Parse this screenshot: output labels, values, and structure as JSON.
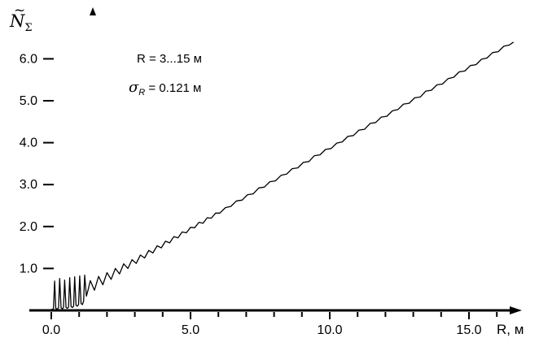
{
  "figure": {
    "y_axis_title": {
      "base": "N",
      "tilde": "~",
      "sub": "Σ"
    },
    "x_axis_title": "R, м",
    "annotations": [
      {
        "text": "R = 3...15 м"
      },
      {
        "symbol": "σ",
        "sub": "R",
        "rest": " = 0.121 м"
      }
    ]
  },
  "chart_data": {
    "type": "line",
    "title": "",
    "xlabel": "R, м",
    "ylabel": "Ñ_Σ",
    "x_range": [
      0,
      16.8
    ],
    "y_range": [
      0,
      6.8
    ],
    "grid": false,
    "legend": "none",
    "annotations": [
      "R = 3...15 м",
      "σ_R = 0.121 м"
    ],
    "x_ticks": [
      {
        "value": 0,
        "label": "0.0"
      },
      {
        "value": 5,
        "label": "5.0"
      },
      {
        "value": 10,
        "label": "10.0"
      },
      {
        "value": 15,
        "label": "15.0"
      }
    ],
    "x_minor_tick_step": 1,
    "y_ticks": [
      {
        "value": 1,
        "label": "1.0"
      },
      {
        "value": 2,
        "label": "2.0"
      },
      {
        "value": 3,
        "label": "3.0"
      },
      {
        "value": 4,
        "label": "4.0"
      },
      {
        "value": 5,
        "label": "5.0"
      },
      {
        "value": 6,
        "label": "6.0"
      }
    ],
    "line_color": "#000000",
    "series": [
      {
        "name": "N_sigma(R)",
        "points": [
          [
            0,
            0.02
          ],
          [
            0.05,
            0.03
          ],
          [
            0.08,
            0.05
          ],
          [
            0.12,
            0.7
          ],
          [
            0.16,
            0.05
          ],
          [
            0.22,
            0.03
          ],
          [
            0.26,
            0.06
          ],
          [
            0.3,
            0.76
          ],
          [
            0.35,
            0.06
          ],
          [
            0.4,
            0.04
          ],
          [
            0.44,
            0.07
          ],
          [
            0.48,
            0.72
          ],
          [
            0.53,
            0.07
          ],
          [
            0.58,
            0.05
          ],
          [
            0.62,
            0.08
          ],
          [
            0.66,
            0.78
          ],
          [
            0.71,
            0.09
          ],
          [
            0.76,
            0.07
          ],
          [
            0.8,
            0.1
          ],
          [
            0.84,
            0.8
          ],
          [
            0.89,
            0.12
          ],
          [
            0.94,
            0.1
          ],
          [
            0.98,
            0.14
          ],
          [
            1.02,
            0.82
          ],
          [
            1.07,
            0.16
          ],
          [
            1.12,
            0.14
          ],
          [
            1.16,
            0.22
          ],
          [
            1.2,
            0.84
          ],
          [
            1.26,
            0.34
          ],
          [
            1.32,
            0.48
          ],
          [
            1.4,
            0.71
          ],
          [
            1.55,
            0.48
          ],
          [
            1.7,
            0.81
          ],
          [
            1.85,
            0.61
          ],
          [
            2,
            0.9
          ],
          [
            2.15,
            0.74
          ],
          [
            2.3,
            1
          ],
          [
            2.45,
            0.87
          ],
          [
            2.6,
            1.11
          ],
          [
            2.75,
            1
          ],
          [
            2.9,
            1.21
          ],
          [
            3.05,
            1.12
          ],
          [
            3.2,
            1.32
          ],
          [
            3.35,
            1.25
          ],
          [
            3.5,
            1.43
          ],
          [
            3.65,
            1.37
          ],
          [
            3.8,
            1.54
          ],
          [
            3.95,
            1.49
          ],
          [
            4.1,
            1.65
          ],
          [
            4.25,
            1.61
          ],
          [
            4.4,
            1.76
          ],
          [
            4.55,
            1.73
          ],
          [
            4.7,
            1.87
          ],
          [
            4.85,
            1.85
          ],
          [
            5,
            1.98
          ],
          [
            5.15,
            1.97
          ],
          [
            5.3,
            2.1
          ],
          [
            5.45,
            2.08
          ],
          [
            5.6,
            2.21
          ],
          [
            5.75,
            2.2
          ],
          [
            5.9,
            2.32
          ],
          [
            6.05,
            2.32
          ],
          [
            6.25,
            2.45
          ],
          [
            6.45,
            2.48
          ],
          [
            6.65,
            2.61
          ],
          [
            6.85,
            2.63
          ],
          [
            7.05,
            2.76
          ],
          [
            7.25,
            2.78
          ],
          [
            7.45,
            2.92
          ],
          [
            7.65,
            2.94
          ],
          [
            7.85,
            3.07
          ],
          [
            8.05,
            3.09
          ],
          [
            8.25,
            3.22
          ],
          [
            8.45,
            3.25
          ],
          [
            8.65,
            3.38
          ],
          [
            8.85,
            3.4
          ],
          [
            9.05,
            3.53
          ],
          [
            9.25,
            3.55
          ],
          [
            9.45,
            3.69
          ],
          [
            9.65,
            3.71
          ],
          [
            9.85,
            3.84
          ],
          [
            10.05,
            3.86
          ],
          [
            10.25,
            3.99
          ],
          [
            10.45,
            4.02
          ],
          [
            10.65,
            4.15
          ],
          [
            10.85,
            4.17
          ],
          [
            11.05,
            4.3
          ],
          [
            11.25,
            4.32
          ],
          [
            11.45,
            4.46
          ],
          [
            11.65,
            4.48
          ],
          [
            11.85,
            4.61
          ],
          [
            12.05,
            4.63
          ],
          [
            12.25,
            4.76
          ],
          [
            12.45,
            4.79
          ],
          [
            12.65,
            4.92
          ],
          [
            12.85,
            4.94
          ],
          [
            13.05,
            5.07
          ],
          [
            13.25,
            5.09
          ],
          [
            13.45,
            5.23
          ],
          [
            13.65,
            5.25
          ],
          [
            13.85,
            5.38
          ],
          [
            14.05,
            5.4
          ],
          [
            14.25,
            5.53
          ],
          [
            14.45,
            5.56
          ],
          [
            14.65,
            5.69
          ],
          [
            14.85,
            5.71
          ],
          [
            15.05,
            5.84
          ],
          [
            15.25,
            5.86
          ],
          [
            15.45,
            5.99
          ],
          [
            15.65,
            6.02
          ],
          [
            15.85,
            6.15
          ],
          [
            16.05,
            6.17
          ],
          [
            16.25,
            6.3
          ],
          [
            16.45,
            6.33
          ],
          [
            16.6,
            6.4
          ]
        ]
      }
    ]
  }
}
